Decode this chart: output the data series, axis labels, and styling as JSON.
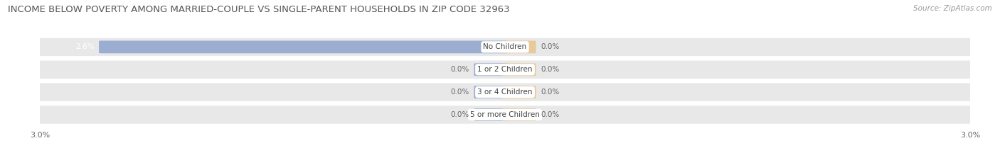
{
  "title": "INCOME BELOW POVERTY AMONG MARRIED-COUPLE VS SINGLE-PARENT HOUSEHOLDS IN ZIP CODE 32963",
  "source": "Source: ZipAtlas.com",
  "categories": [
    "No Children",
    "1 or 2 Children",
    "3 or 4 Children",
    "5 or more Children"
  ],
  "married_values": [
    2.6,
    0.0,
    0.0,
    0.0
  ],
  "single_values": [
    0.0,
    0.0,
    0.0,
    0.0
  ],
  "married_color": "#9badd1",
  "single_color": "#e8c99a",
  "axis_max": 3.0,
  "axis_min": -3.0,
  "bg_color": "#ffffff",
  "row_bg_color": "#e8e8e8",
  "title_fontsize": 9.5,
  "label_fontsize": 7.5,
  "source_fontsize": 7.5,
  "axis_label_fontsize": 8.0,
  "stub_size": 0.18
}
